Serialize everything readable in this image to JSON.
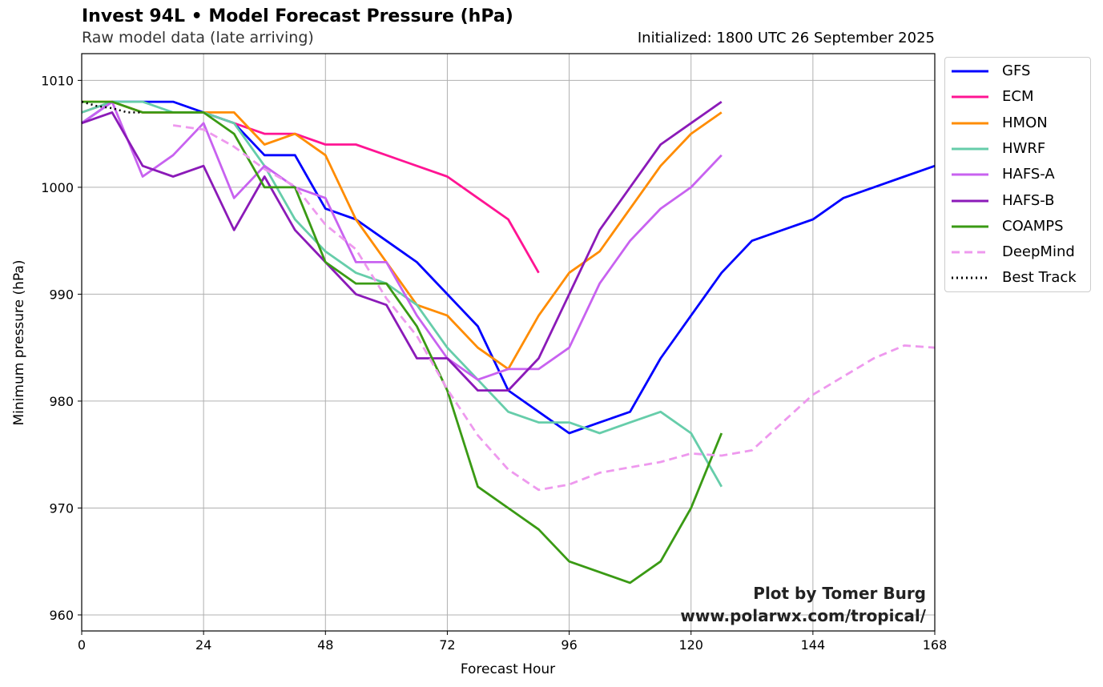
{
  "header": {
    "title": "Invest 94L • Model Forecast Pressure (hPa)",
    "subtitle": "Raw model data (late arriving)",
    "initialized": "Initialized: 1800 UTC 26 September 2025"
  },
  "credit": {
    "line1": "Plot by Tomer Burg",
    "line2": "www.polarwx.com/tropical/"
  },
  "chart_data": {
    "type": "line",
    "title": "Invest 94L • Model Forecast Pressure (hPa)",
    "xlabel": "Forecast Hour",
    "ylabel": "Minimum pressure (hPa)",
    "xlim": [
      0,
      168
    ],
    "ylim": [
      958.5,
      1012.5
    ],
    "xticks": [
      0,
      24,
      48,
      72,
      96,
      120,
      144,
      168
    ],
    "yticks": [
      960,
      970,
      980,
      990,
      1000,
      1010
    ],
    "grid": true,
    "legend_position": "outside-top-right",
    "series": [
      {
        "name": "GFS",
        "color": "#0000ff",
        "dash": "solid",
        "x": [
          0,
          6,
          12,
          18,
          24,
          30,
          36,
          42,
          48,
          54,
          60,
          66,
          72,
          78,
          84,
          90,
          96,
          102,
          108,
          114,
          120,
          126,
          132,
          138,
          144,
          150,
          156,
          162,
          168
        ],
        "y": [
          1006,
          1008,
          1008,
          1008,
          1007,
          1006,
          1003,
          1003,
          998,
          997,
          995,
          993,
          990,
          987,
          981,
          979,
          977,
          978,
          979,
          984,
          988,
          992,
          995,
          996,
          997,
          999,
          1000,
          1001,
          1002
        ]
      },
      {
        "name": "ECM",
        "color": "#ff1493",
        "dash": "solid",
        "x": [
          0,
          6,
          12,
          18,
          24,
          30,
          36,
          42,
          48,
          54,
          60,
          66,
          72,
          78,
          84,
          90
        ],
        "y": [
          1007,
          1008,
          1007,
          1007,
          1007,
          1006,
          1005,
          1005,
          1004,
          1004,
          1003,
          1002,
          1001,
          999,
          997,
          992
        ]
      },
      {
        "name": "HMON",
        "color": "#ff8c00",
        "dash": "solid",
        "x": [
          0,
          6,
          12,
          18,
          24,
          30,
          36,
          42,
          48,
          54,
          60,
          66,
          72,
          78,
          84,
          90,
          96,
          102,
          108,
          114,
          120,
          126
        ],
        "y": [
          1008,
          1008,
          1007,
          1007,
          1007,
          1007,
          1004,
          1005,
          1003,
          997,
          993,
          989,
          988,
          985,
          983,
          988,
          992,
          994,
          998,
          1002,
          1005,
          1007
        ]
      },
      {
        "name": "HWRF",
        "color": "#66cdaa",
        "dash": "solid",
        "x": [
          0,
          6,
          12,
          18,
          24,
          30,
          36,
          42,
          48,
          54,
          60,
          66,
          72,
          78,
          84,
          90,
          96,
          102,
          108,
          114,
          120,
          126
        ],
        "y": [
          1007,
          1008,
          1008,
          1007,
          1007,
          1006,
          1002,
          997,
          994,
          992,
          991,
          989,
          985,
          982,
          979,
          978,
          978,
          977,
          978,
          979,
          977,
          972
        ]
      },
      {
        "name": "HAFS-A",
        "color": "#c862f0",
        "dash": "solid",
        "x": [
          0,
          6,
          12,
          18,
          24,
          30,
          36,
          42,
          48,
          54,
          60,
          66,
          72,
          78,
          84,
          90,
          96,
          102,
          108,
          114,
          120,
          126
        ],
        "y": [
          1006,
          1008,
          1001,
          1003,
          1006,
          999,
          1002,
          1000,
          999,
          993,
          993,
          988,
          984,
          982,
          983,
          983,
          985,
          991,
          995,
          998,
          1000,
          1003
        ]
      },
      {
        "name": "HAFS-B",
        "color": "#8b1ab8",
        "dash": "solid",
        "x": [
          0,
          6,
          12,
          18,
          24,
          30,
          36,
          42,
          48,
          54,
          60,
          66,
          72,
          78,
          84,
          90,
          96,
          102,
          108,
          114,
          120,
          126
        ],
        "y": [
          1006,
          1007,
          1002,
          1001,
          1002,
          996,
          1001,
          996,
          993,
          990,
          989,
          984,
          984,
          981,
          981,
          984,
          990,
          996,
          1000,
          1004,
          1006,
          1008
        ]
      },
      {
        "name": "COAMPS",
        "color": "#3a9a14",
        "dash": "solid",
        "x": [
          0,
          6,
          12,
          18,
          24,
          30,
          36,
          42,
          48,
          54,
          60,
          66,
          72,
          78,
          90,
          96,
          108,
          114,
          120,
          126
        ],
        "y": [
          1008,
          1008,
          1007,
          1007,
          1007,
          1005,
          1000,
          1000,
          993,
          991,
          991,
          987,
          981,
          972,
          968,
          965,
          963,
          965,
          970,
          977
        ]
      },
      {
        "name": "DeepMind",
        "color": "#ee99ee",
        "dash": "dashed",
        "x": [
          18,
          24,
          30,
          36,
          42,
          48,
          54,
          60,
          66,
          72,
          78,
          84,
          90,
          96,
          102,
          108,
          114,
          120,
          126,
          132,
          138,
          144,
          150,
          156,
          162,
          168
        ],
        "y": [
          1005.8,
          1005.4,
          1003.8,
          1001.7,
          1000.1,
          996.5,
          994.2,
          989.6,
          986.1,
          981.1,
          976.8,
          973.6,
          971.7,
          972.2,
          973.3,
          973.8,
          974.3,
          975.1,
          974.9,
          975.4,
          978.0,
          980.6,
          982.3,
          984.0,
          985.2,
          985.0
        ]
      },
      {
        "name": "Best Track",
        "color": "#000000",
        "dash": "dotted",
        "x": [
          0,
          3,
          6,
          9,
          12
        ],
        "y": [
          1008,
          1007.6,
          1007.4,
          1007,
          1007
        ]
      }
    ]
  }
}
